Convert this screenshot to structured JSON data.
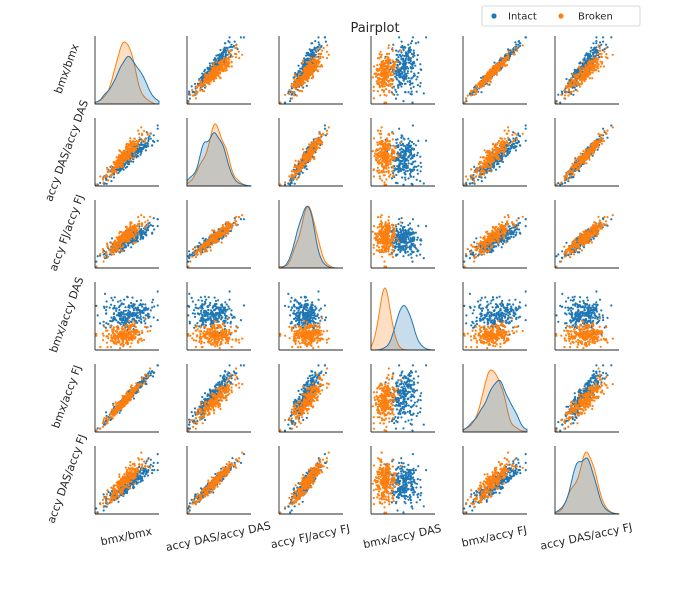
{
  "chart_data": {
    "type": "scatter",
    "subtype": "pairplot",
    "title": "Pairplot",
    "variables": [
      "bmx/bmx",
      "accy DAS/accy DAS",
      "accy FJ/accy FJ",
      "bmx/accy DAS",
      "bmx/accy FJ",
      "accy DAS/accy FJ"
    ],
    "diagonal": "kde",
    "legend": {
      "placement": "top-right",
      "entries": [
        "Intact",
        "Broken"
      ]
    },
    "series": [
      {
        "name": "Intact",
        "color": "#1f77b4"
      },
      {
        "name": "Broken",
        "color": "#ff7f0e"
      }
    ],
    "grid": false,
    "ticks": false
  }
}
